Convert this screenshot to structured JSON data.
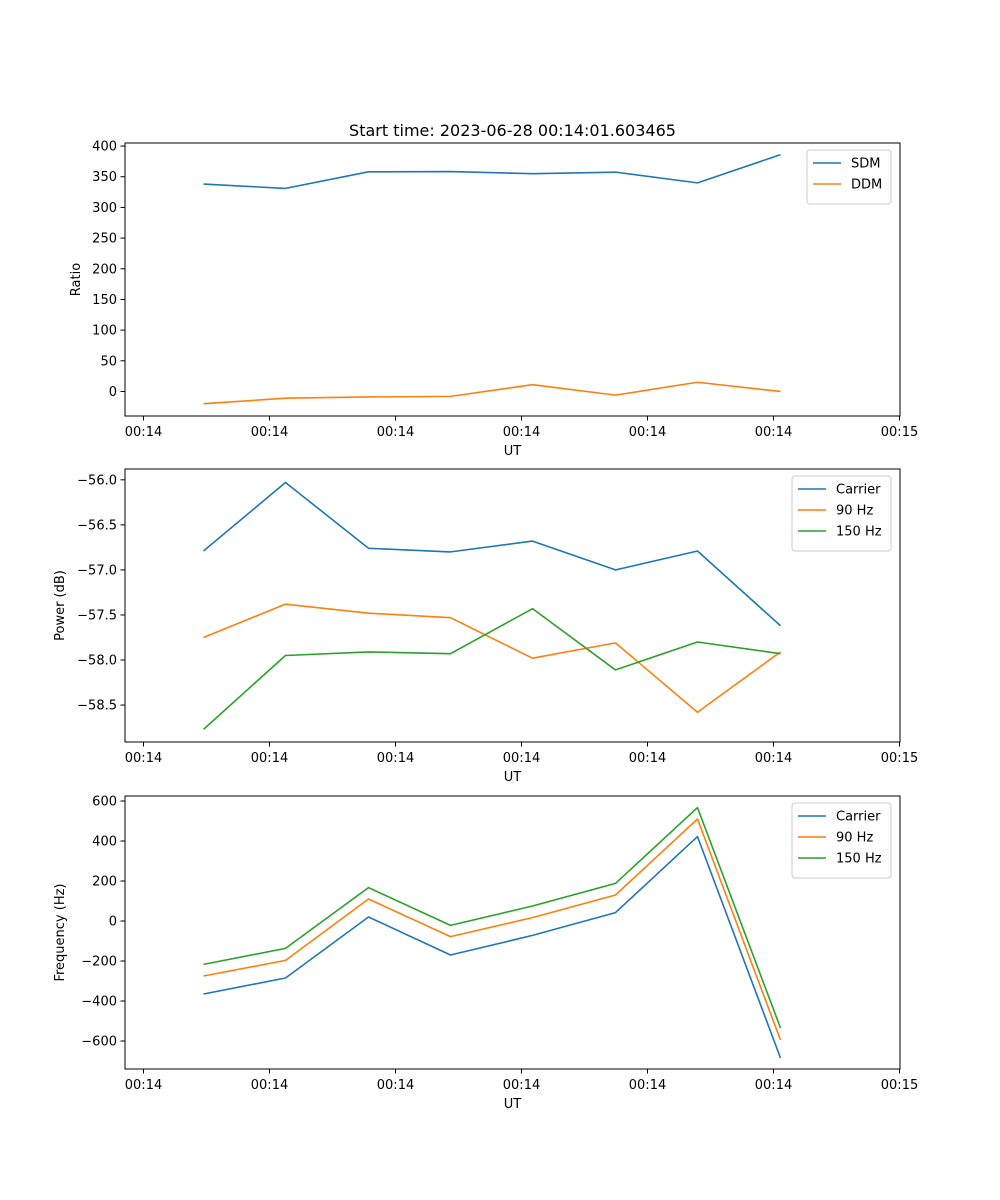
{
  "figure": {
    "title": "Start time: 2023-06-28 00:14:01.603465"
  },
  "chart_data": [
    {
      "type": "line",
      "title": "Start time: 2023-06-28 00:14:01.603465",
      "xlabel": "UT",
      "ylabel": "Ratio",
      "x_tick_labels": [
        "00:14",
        "00:14",
        "00:14",
        "00:14",
        "00:14",
        "00:14",
        "00:15"
      ],
      "x_points": 8,
      "ylim": [
        -40,
        405
      ],
      "y_ticks": [
        0,
        50,
        100,
        150,
        200,
        250,
        300,
        350,
        400
      ],
      "y_tick_labels": [
        "0",
        "50",
        "100",
        "150",
        "200",
        "250",
        "300",
        "350",
        "400"
      ],
      "legend_position": "top-right",
      "series": [
        {
          "name": "SDM",
          "color": "#1f77b4",
          "values": [
            338,
            331,
            358,
            358.5,
            355,
            357.5,
            340,
            386
          ]
        },
        {
          "name": "DDM",
          "color": "#ff7f0e",
          "values": [
            -20,
            -11,
            -9,
            -8,
            11,
            -6,
            15,
            0
          ]
        }
      ]
    },
    {
      "type": "line",
      "xlabel": "UT",
      "ylabel": "Power (dB)",
      "x_tick_labels": [
        "00:14",
        "00:14",
        "00:14",
        "00:14",
        "00:14",
        "00:14",
        "00:15"
      ],
      "x_points": 8,
      "ylim": [
        -58.91,
        -55.88
      ],
      "y_ticks": [
        -58.5,
        -58.0,
        -57.5,
        -57.0,
        -56.5,
        -56.0
      ],
      "y_tick_labels": [
        "−58.5",
        "−58.0",
        "−57.5",
        "−57.0",
        "−56.5",
        "−56.0"
      ],
      "legend_position": "top-right",
      "series": [
        {
          "name": "Carrier",
          "color": "#1f77b4",
          "values": [
            -56.79,
            -56.03,
            -56.76,
            -56.8,
            -56.68,
            -57.0,
            -56.79,
            -57.62
          ]
        },
        {
          "name": "90 Hz",
          "color": "#ff7f0e",
          "values": [
            -57.75,
            -57.38,
            -57.48,
            -57.53,
            -57.98,
            -57.81,
            -58.58,
            -57.91
          ]
        },
        {
          "name": "150 Hz",
          "color": "#2ca02c",
          "values": [
            -58.77,
            -57.95,
            -57.91,
            -57.93,
            -57.43,
            -58.11,
            -57.8,
            -57.93
          ]
        }
      ]
    },
    {
      "type": "line",
      "xlabel": "UT",
      "ylabel": "Frequency (Hz)",
      "x_tick_labels": [
        "00:14",
        "00:14",
        "00:14",
        "00:14",
        "00:14",
        "00:14",
        "00:15"
      ],
      "x_points": 8,
      "ylim": [
        -740,
        625
      ],
      "y_ticks": [
        -600,
        -400,
        -200,
        0,
        200,
        400,
        600
      ],
      "y_tick_labels": [
        "−600",
        "−400",
        "−200",
        "0",
        "200",
        "400",
        "600"
      ],
      "legend_position": "top-right",
      "series": [
        {
          "name": "Carrier",
          "color": "#1f77b4",
          "values": [
            -365,
            -285,
            20,
            -170,
            -72,
            42,
            422,
            -685
          ]
        },
        {
          "name": "90 Hz",
          "color": "#ff7f0e",
          "values": [
            -275,
            -197,
            110,
            -78,
            17,
            130,
            510,
            -595
          ]
        },
        {
          "name": "150 Hz",
          "color": "#2ca02c",
          "values": [
            -217,
            -137,
            167,
            -22,
            75,
            188,
            567,
            -535
          ]
        }
      ]
    }
  ]
}
